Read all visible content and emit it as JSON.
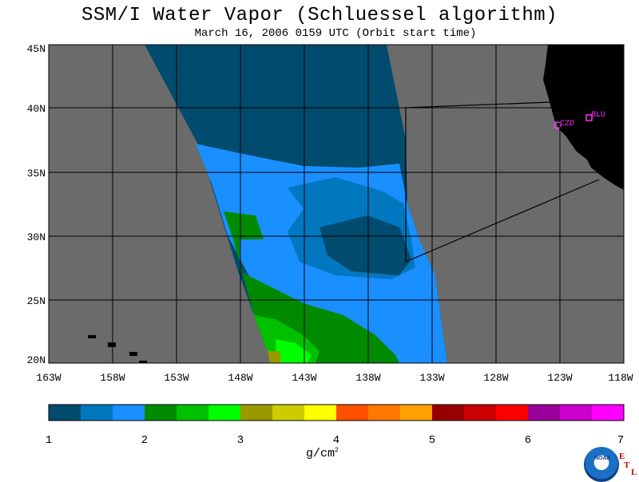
{
  "title": "SSM/I Water Vapor (Schluessel algorithm)",
  "subtitle": "March 16, 2006   0159 UTC  (Orbit start time)",
  "map": {
    "lat_labels": [
      "45N",
      "40N",
      "35N",
      "30N",
      "25N",
      "20N"
    ],
    "lon_labels": [
      "163W",
      "158W",
      "153W",
      "148W",
      "143W",
      "138W",
      "133W",
      "128W",
      "123W",
      "118W"
    ],
    "stations": [
      {
        "label": "CZD"
      },
      {
        "label": "BLU"
      }
    ],
    "colors": {
      "land_and_no_data": "#6b6b6b",
      "coast_land": "#000000",
      "station_marker": "#ff33ff"
    }
  },
  "colorbar": {
    "tick_labels": [
      "1",
      "2",
      "3",
      "4",
      "5",
      "6",
      "7"
    ],
    "unit_base": "g/cm",
    "unit_exp": "2",
    "colors": [
      "#004b6e",
      "#0077bf",
      "#1a8fff",
      "#008a00",
      "#00c000",
      "#00ff00",
      "#999900",
      "#cccc00",
      "#ffff00",
      "#ff5000",
      "#ff7800",
      "#ffa000",
      "#990000",
      "#cc0000",
      "#ff0000",
      "#990099",
      "#cc00cc",
      "#ff00ff"
    ]
  },
  "logo": {
    "agency": "NOAA",
    "lab_letters": [
      "E",
      "T",
      "L"
    ]
  }
}
